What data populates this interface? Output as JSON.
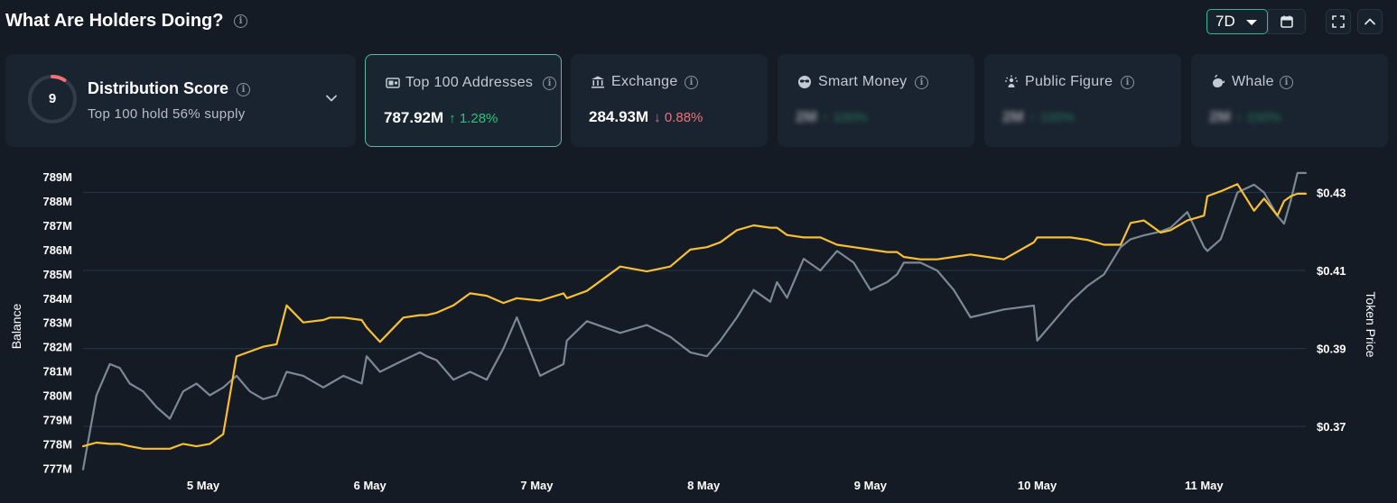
{
  "header": {
    "title": "What Are Holders Doing?",
    "period": "7D"
  },
  "score_card": {
    "score": "9",
    "title": "Distribution Score",
    "subtitle": "Top 100 hold 56% supply",
    "score_fraction": 0.09
  },
  "cards": [
    {
      "label": "Top 100 Addresses",
      "icon": "wallet-icon",
      "value": "787.92M",
      "change": "1.28%",
      "direction": "up",
      "active": true,
      "blurred": false
    },
    {
      "label": "Exchange",
      "icon": "bank-icon",
      "value": "284.93M",
      "change": "0.88%",
      "direction": "down",
      "active": false,
      "blurred": false
    },
    {
      "label": "Smart Money",
      "icon": "sunglasses-icon",
      "value": "2M",
      "change": "100%",
      "direction": "up",
      "active": false,
      "blurred": true
    },
    {
      "label": "Public Figure",
      "icon": "megaphone-icon",
      "value": "2M",
      "change": "100%",
      "direction": "up",
      "active": false,
      "blurred": true
    },
    {
      "label": "Whale",
      "icon": "whale-icon",
      "value": "2M",
      "change": "100%",
      "direction": "up",
      "active": false,
      "blurred": true
    }
  ],
  "colors": {
    "balance": "#f7c034",
    "price": "#7c8896",
    "accent": "#2fb899",
    "up": "#2ec27e",
    "down": "#f07178"
  },
  "chart_data": {
    "type": "line",
    "ylabel": "Balance",
    "y2label": "Token Price",
    "ylim": [
      776.9,
      789.3
    ],
    "y_ticks": [
      "777M",
      "778M",
      "779M",
      "780M",
      "781M",
      "782M",
      "783M",
      "784M",
      "785M",
      "786M",
      "787M",
      "788M",
      "789M"
    ],
    "y2lim": [
      0.3587,
      0.4359
    ],
    "y2_ticks": [
      "$0.37",
      "$0.39",
      "$0.41",
      "$0.43"
    ],
    "x_ticks": [
      "5 May",
      "6 May",
      "7 May",
      "8 May",
      "9 May",
      "10 May",
      "11 May"
    ],
    "x_tick_positions": [
      5,
      6,
      7,
      8,
      9,
      10,
      11
    ],
    "xlim": [
      4.28,
      11.61
    ],
    "grid": true,
    "series": [
      {
        "name": "Balance",
        "axis": "left",
        "x": [
          4.28,
          4.36,
          4.44,
          4.5,
          4.56,
          4.64,
          4.72,
          4.8,
          4.88,
          4.96,
          5.04,
          5.12,
          5.2,
          5.28,
          5.36,
          5.44,
          5.5,
          5.6,
          5.72,
          5.76,
          5.84,
          5.95,
          5.98,
          6.06,
          6.2,
          6.3,
          6.34,
          6.4,
          6.5,
          6.6,
          6.7,
          6.8,
          6.88,
          7.02,
          7.16,
          7.18,
          7.3,
          7.5,
          7.66,
          7.8,
          7.92,
          8.02,
          8.1,
          8.2,
          8.3,
          8.4,
          8.44,
          8.5,
          8.6,
          8.7,
          8.8,
          8.9,
          9.0,
          9.1,
          9.16,
          9.2,
          9.3,
          9.4,
          9.5,
          9.6,
          9.8,
          9.98,
          10.0,
          10.2,
          10.3,
          10.4,
          10.5,
          10.56,
          10.64,
          10.74,
          10.8,
          10.9,
          11.0,
          11.02,
          11.1,
          11.2,
          11.3,
          11.36,
          11.44,
          11.48,
          11.52,
          11.56,
          11.61
        ],
        "y": [
          777.9,
          778.05,
          778.0,
          778.0,
          777.9,
          777.8,
          777.8,
          777.8,
          778.0,
          777.9,
          778.0,
          778.4,
          781.6,
          781.8,
          782.0,
          782.1,
          783.7,
          783.0,
          783.1,
          783.2,
          783.2,
          783.1,
          782.8,
          782.2,
          783.2,
          783.3,
          783.3,
          783.4,
          783.7,
          784.2,
          784.1,
          783.8,
          784.0,
          783.9,
          784.2,
          784.0,
          784.3,
          785.3,
          785.1,
          785.3,
          786.0,
          786.1,
          786.3,
          786.8,
          787.0,
          786.9,
          786.9,
          786.6,
          786.5,
          786.5,
          786.2,
          786.1,
          786.0,
          785.9,
          785.9,
          785.7,
          785.6,
          785.6,
          785.7,
          785.8,
          785.6,
          786.3,
          786.5,
          786.5,
          786.4,
          786.2,
          786.2,
          787.1,
          787.2,
          786.7,
          786.8,
          787.2,
          787.4,
          788.2,
          788.4,
          788.7,
          787.6,
          788.1,
          787.4,
          788.0,
          788.2,
          788.3,
          788.3
        ]
      },
      {
        "name": "Token Price",
        "axis": "right",
        "x": [
          4.28,
          4.36,
          4.44,
          4.5,
          4.56,
          4.64,
          4.72,
          4.8,
          4.88,
          4.96,
          5.04,
          5.12,
          5.2,
          5.28,
          5.36,
          5.44,
          5.5,
          5.6,
          5.72,
          5.76,
          5.84,
          5.95,
          5.98,
          6.06,
          6.2,
          6.3,
          6.34,
          6.4,
          6.5,
          6.6,
          6.7,
          6.8,
          6.88,
          7.02,
          7.16,
          7.18,
          7.3,
          7.5,
          7.66,
          7.8,
          7.92,
          8.02,
          8.1,
          8.2,
          8.3,
          8.4,
          8.44,
          8.5,
          8.6,
          8.7,
          8.8,
          8.9,
          9.0,
          9.1,
          9.16,
          9.2,
          9.3,
          9.4,
          9.5,
          9.6,
          9.8,
          9.98,
          10.0,
          10.2,
          10.3,
          10.4,
          10.5,
          10.56,
          10.64,
          10.74,
          10.8,
          10.9,
          11.0,
          11.02,
          11.1,
          11.2,
          11.3,
          11.36,
          11.44,
          11.48,
          11.52,
          11.56,
          11.61
        ],
        "y": [
          0.359,
          0.378,
          0.386,
          0.385,
          0.381,
          0.379,
          0.375,
          0.372,
          0.379,
          0.381,
          0.378,
          0.38,
          0.383,
          0.379,
          0.377,
          0.378,
          0.384,
          0.383,
          0.38,
          0.381,
          0.383,
          0.381,
          0.388,
          0.384,
          0.387,
          0.389,
          0.388,
          0.387,
          0.382,
          0.384,
          0.382,
          0.39,
          0.398,
          0.383,
          0.386,
          0.392,
          0.397,
          0.394,
          0.396,
          0.393,
          0.389,
          0.388,
          0.392,
          0.398,
          0.405,
          0.402,
          0.407,
          0.403,
          0.413,
          0.41,
          0.415,
          0.412,
          0.405,
          0.407,
          0.409,
          0.412,
          0.412,
          0.41,
          0.405,
          0.398,
          0.4,
          0.401,
          0.392,
          0.402,
          0.406,
          0.409,
          0.416,
          0.418,
          0.419,
          0.42,
          0.421,
          0.425,
          0.416,
          0.415,
          0.418,
          0.43,
          0.432,
          0.43,
          0.424,
          0.422,
          0.428,
          0.435,
          0.435
        ]
      }
    ]
  }
}
